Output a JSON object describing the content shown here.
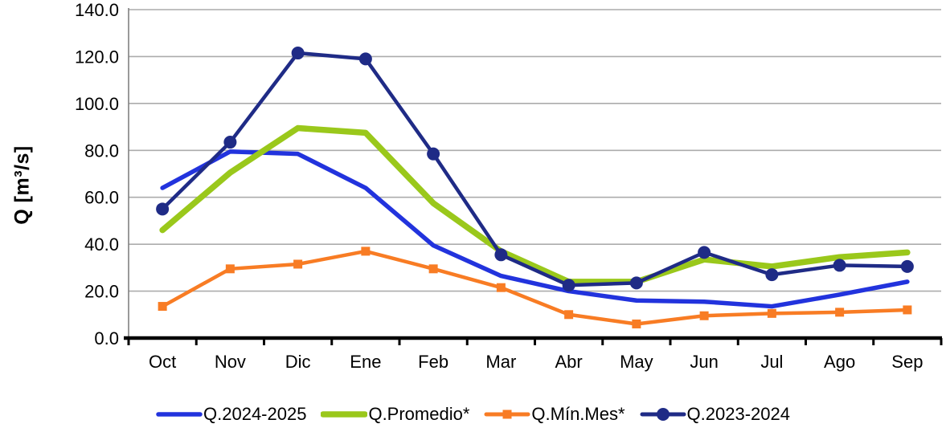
{
  "chart_data": {
    "type": "line",
    "title": "",
    "xlabel": "",
    "ylabel": "Q [m³/s]",
    "ylim": [
      0,
      140
    ],
    "ytick_step": 20,
    "ytick_labels": [
      "0.0",
      "20.0",
      "40.0",
      "60.0",
      "80.0",
      "100.0",
      "120.0",
      "140.0"
    ],
    "grid": true,
    "legend_position": "bottom",
    "categories": [
      "Oct",
      "Nov",
      "Dic",
      "Ene",
      "Feb",
      "Mar",
      "Abr",
      "May",
      "Jun",
      "Jul",
      "Ago",
      "Sep"
    ],
    "series": [
      {
        "name": "Q.2024-2025",
        "color": "#2233DD",
        "marker": "none",
        "line_width": 5.5,
        "values": [
          64,
          79.5,
          78.5,
          64,
          39.5,
          26.5,
          20,
          16,
          15.5,
          13.5,
          18.5,
          24
        ]
      },
      {
        "name": "Q.Promedio*",
        "color": "#9AC81B",
        "marker": "none",
        "line_width": 7.5,
        "values": [
          46,
          70.5,
          89.5,
          87.5,
          57.5,
          37,
          24,
          24,
          33.5,
          30.5,
          34.5,
          36.5
        ]
      },
      {
        "name": "Q.Mín.Mes*",
        "color": "#F87C24",
        "marker": "square",
        "line_width": 4.5,
        "values": [
          13.5,
          29.5,
          31.5,
          37,
          29.5,
          21.5,
          10,
          6,
          9.5,
          10.5,
          11,
          12
        ]
      },
      {
        "name": "Q.2023-2024",
        "color": "#1F2B86",
        "marker": "circle",
        "line_width": 4.5,
        "values": [
          55,
          83.5,
          121.5,
          119,
          78.5,
          35.5,
          22.5,
          23.5,
          36.5,
          27,
          31,
          30.5
        ]
      }
    ]
  },
  "colors": {
    "background": "#FFFFFF",
    "gridline": "#ACACAC",
    "y_axis_line": "#808080",
    "x_axis_line": "#000000",
    "tick_text": "#000000"
  }
}
